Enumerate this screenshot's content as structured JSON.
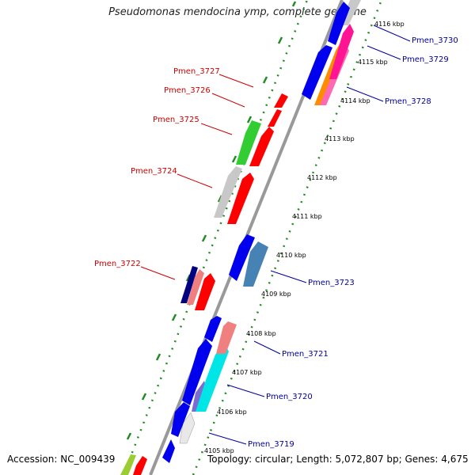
{
  "title": "Pseudomonas mendocina ymp, complete genome",
  "footer": {
    "accession": "Accession: NC_009439",
    "summary": "Topology: circular; Length: 5,072,807 bp; Genes: 4,675"
  },
  "ticks": [
    "4105 kbp",
    "4106 kbp",
    "4107 kbp",
    "4108 kbp",
    "4109 kbp",
    "4110 kbp",
    "4111 kbp",
    "4112 kbp",
    "4113 kbp",
    "4114 kbp",
    "4115 kbp",
    "4116 kbp"
  ],
  "genes_reverse": [
    "Pmen_3727",
    "Pmen_3726",
    "Pmen_3725",
    "Pmen_3724",
    "Pmen_3722"
  ],
  "genes_forward": [
    "Pmen_3730",
    "Pmen_3729",
    "Pmen_3728",
    "Pmen_3723",
    "Pmen_3721",
    "Pmen_3720",
    "Pmen_3719"
  ],
  "colors": {
    "reverse_label": "#cc0000",
    "forward_label": "#000099",
    "backbone": "#808080",
    "dotted_track": "#228b22"
  }
}
